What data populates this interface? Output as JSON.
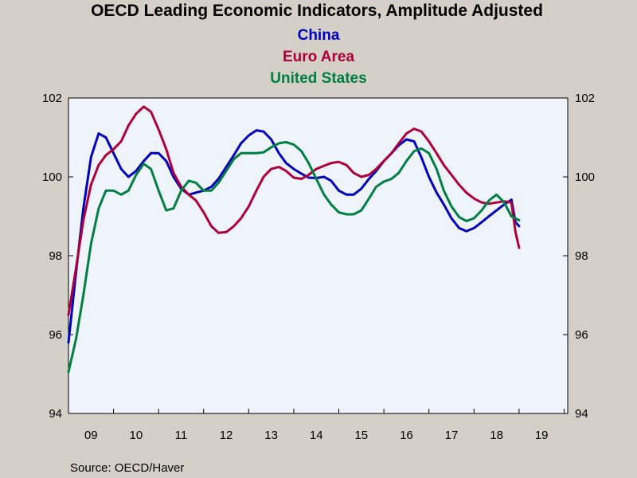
{
  "chart_data": {
    "type": "line",
    "title": "OECD Leading Economic Indicators, Amplitude Adjusted",
    "source": "Source:  OECD/Haver",
    "x_tick_labels": [
      "09",
      "10",
      "11",
      "12",
      "13",
      "14",
      "15",
      "16",
      "17",
      "18",
      "19"
    ],
    "xlim": [
      2009.0,
      2020.08
    ],
    "ylim": [
      94,
      102
    ],
    "y_ticks": [
      94,
      96,
      98,
      100,
      102
    ],
    "y_tick_labels": [
      "94",
      "96",
      "98",
      "100",
      "102"
    ],
    "grid": false,
    "plot_background": "#eef3fc",
    "page_background": "#d4d0c8",
    "series": [
      {
        "name": "China",
        "color": "#0000c0",
        "points": [
          [
            2009.0,
            95.8
          ],
          [
            2009.17,
            97.6
          ],
          [
            2009.33,
            99.2
          ],
          [
            2009.5,
            100.5
          ],
          [
            2009.67,
            101.1
          ],
          [
            2009.83,
            101.0
          ],
          [
            2010.0,
            100.6
          ],
          [
            2010.17,
            100.2
          ],
          [
            2010.33,
            100.0
          ],
          [
            2010.5,
            100.15
          ],
          [
            2010.67,
            100.4
          ],
          [
            2010.83,
            100.6
          ],
          [
            2011.0,
            100.6
          ],
          [
            2011.17,
            100.4
          ],
          [
            2011.33,
            100.0
          ],
          [
            2011.5,
            99.7
          ],
          [
            2011.67,
            99.55
          ],
          [
            2011.83,
            99.6
          ],
          [
            2012.0,
            99.65
          ],
          [
            2012.17,
            99.75
          ],
          [
            2012.33,
            99.95
          ],
          [
            2012.5,
            100.25
          ],
          [
            2012.67,
            100.55
          ],
          [
            2012.83,
            100.85
          ],
          [
            2013.0,
            101.05
          ],
          [
            2013.17,
            101.18
          ],
          [
            2013.33,
            101.15
          ],
          [
            2013.5,
            100.95
          ],
          [
            2013.67,
            100.6
          ],
          [
            2013.83,
            100.35
          ],
          [
            2014.0,
            100.2
          ],
          [
            2014.17,
            100.08
          ],
          [
            2014.33,
            99.98
          ],
          [
            2014.5,
            99.97
          ],
          [
            2014.67,
            100.0
          ],
          [
            2014.83,
            99.9
          ],
          [
            2015.0,
            99.65
          ],
          [
            2015.17,
            99.55
          ],
          [
            2015.33,
            99.55
          ],
          [
            2015.5,
            99.7
          ],
          [
            2015.67,
            99.95
          ],
          [
            2015.83,
            100.15
          ],
          [
            2016.0,
            100.4
          ],
          [
            2016.17,
            100.6
          ],
          [
            2016.33,
            100.8
          ],
          [
            2016.5,
            100.95
          ],
          [
            2016.67,
            100.9
          ],
          [
            2016.83,
            100.5
          ],
          [
            2017.0,
            100.0
          ],
          [
            2017.17,
            99.6
          ],
          [
            2017.33,
            99.3
          ],
          [
            2017.5,
            98.95
          ],
          [
            2017.67,
            98.7
          ],
          [
            2017.83,
            98.62
          ],
          [
            2018.0,
            98.7
          ],
          [
            2018.17,
            98.85
          ],
          [
            2018.33,
            99.0
          ],
          [
            2018.5,
            99.15
          ],
          [
            2018.67,
            99.3
          ],
          [
            2018.83,
            99.42
          ],
          [
            2018.92,
            98.85
          ],
          [
            2019.0,
            98.75
          ]
        ]
      },
      {
        "name": "Euro Area",
        "color": "#b0003a",
        "points": [
          [
            2009.0,
            96.5
          ],
          [
            2009.17,
            97.7
          ],
          [
            2009.33,
            98.9
          ],
          [
            2009.5,
            99.8
          ],
          [
            2009.67,
            100.3
          ],
          [
            2009.83,
            100.55
          ],
          [
            2010.0,
            100.7
          ],
          [
            2010.17,
            100.9
          ],
          [
            2010.33,
            101.3
          ],
          [
            2010.5,
            101.6
          ],
          [
            2010.67,
            101.78
          ],
          [
            2010.83,
            101.65
          ],
          [
            2011.0,
            101.2
          ],
          [
            2011.17,
            100.7
          ],
          [
            2011.33,
            100.1
          ],
          [
            2011.5,
            99.75
          ],
          [
            2011.67,
            99.55
          ],
          [
            2011.83,
            99.4
          ],
          [
            2012.0,
            99.1
          ],
          [
            2012.17,
            98.75
          ],
          [
            2012.33,
            98.58
          ],
          [
            2012.5,
            98.6
          ],
          [
            2012.67,
            98.75
          ],
          [
            2012.83,
            98.95
          ],
          [
            2013.0,
            99.25
          ],
          [
            2013.17,
            99.65
          ],
          [
            2013.33,
            100.0
          ],
          [
            2013.5,
            100.2
          ],
          [
            2013.67,
            100.25
          ],
          [
            2013.83,
            100.15
          ],
          [
            2014.0,
            99.98
          ],
          [
            2014.17,
            99.95
          ],
          [
            2014.33,
            100.05
          ],
          [
            2014.5,
            100.2
          ],
          [
            2014.67,
            100.28
          ],
          [
            2014.83,
            100.35
          ],
          [
            2015.0,
            100.38
          ],
          [
            2015.17,
            100.3
          ],
          [
            2015.33,
            100.1
          ],
          [
            2015.5,
            100.0
          ],
          [
            2015.67,
            100.05
          ],
          [
            2015.83,
            100.2
          ],
          [
            2016.0,
            100.4
          ],
          [
            2016.17,
            100.6
          ],
          [
            2016.33,
            100.85
          ],
          [
            2016.5,
            101.1
          ],
          [
            2016.67,
            101.22
          ],
          [
            2016.83,
            101.15
          ],
          [
            2017.0,
            100.9
          ],
          [
            2017.17,
            100.6
          ],
          [
            2017.33,
            100.3
          ],
          [
            2017.5,
            100.05
          ],
          [
            2017.67,
            99.8
          ],
          [
            2017.83,
            99.6
          ],
          [
            2018.0,
            99.45
          ],
          [
            2018.17,
            99.35
          ],
          [
            2018.33,
            99.32
          ],
          [
            2018.5,
            99.35
          ],
          [
            2018.67,
            99.38
          ],
          [
            2018.83,
            99.35
          ],
          [
            2018.92,
            98.6
          ],
          [
            2019.0,
            98.2
          ]
        ]
      },
      {
        "name": "United States",
        "color": "#008040",
        "points": [
          [
            2009.0,
            95.05
          ],
          [
            2009.17,
            95.9
          ],
          [
            2009.33,
            97.0
          ],
          [
            2009.5,
            98.3
          ],
          [
            2009.67,
            99.2
          ],
          [
            2009.83,
            99.65
          ],
          [
            2010.0,
            99.65
          ],
          [
            2010.17,
            99.55
          ],
          [
            2010.33,
            99.65
          ],
          [
            2010.5,
            100.05
          ],
          [
            2010.67,
            100.33
          ],
          [
            2010.83,
            100.2
          ],
          [
            2011.0,
            99.65
          ],
          [
            2011.17,
            99.15
          ],
          [
            2011.33,
            99.2
          ],
          [
            2011.5,
            99.65
          ],
          [
            2011.67,
            99.9
          ],
          [
            2011.83,
            99.85
          ],
          [
            2012.0,
            99.65
          ],
          [
            2012.17,
            99.65
          ],
          [
            2012.33,
            99.85
          ],
          [
            2012.5,
            100.15
          ],
          [
            2012.67,
            100.45
          ],
          [
            2012.83,
            100.6
          ],
          [
            2013.0,
            100.6
          ],
          [
            2013.17,
            100.6
          ],
          [
            2013.33,
            100.62
          ],
          [
            2013.5,
            100.75
          ],
          [
            2013.67,
            100.85
          ],
          [
            2013.83,
            100.88
          ],
          [
            2014.0,
            100.82
          ],
          [
            2014.17,
            100.65
          ],
          [
            2014.33,
            100.35
          ],
          [
            2014.5,
            99.95
          ],
          [
            2014.67,
            99.55
          ],
          [
            2014.83,
            99.3
          ],
          [
            2015.0,
            99.1
          ],
          [
            2015.17,
            99.05
          ],
          [
            2015.33,
            99.05
          ],
          [
            2015.5,
            99.15
          ],
          [
            2015.67,
            99.45
          ],
          [
            2015.83,
            99.75
          ],
          [
            2016.0,
            99.88
          ],
          [
            2016.17,
            99.95
          ],
          [
            2016.33,
            100.1
          ],
          [
            2016.5,
            100.4
          ],
          [
            2016.67,
            100.65
          ],
          [
            2016.83,
            100.72
          ],
          [
            2017.0,
            100.6
          ],
          [
            2017.17,
            100.2
          ],
          [
            2017.33,
            99.65
          ],
          [
            2017.5,
            99.25
          ],
          [
            2017.67,
            98.98
          ],
          [
            2017.83,
            98.88
          ],
          [
            2018.0,
            98.95
          ],
          [
            2018.17,
            99.15
          ],
          [
            2018.33,
            99.4
          ],
          [
            2018.5,
            99.55
          ],
          [
            2018.67,
            99.35
          ],
          [
            2018.83,
            99.0
          ],
          [
            2019.0,
            98.9
          ]
        ]
      }
    ]
  }
}
